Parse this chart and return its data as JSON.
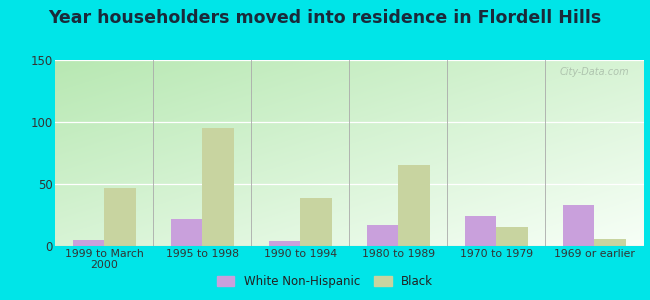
{
  "title": "Year householders moved into residence in Flordell Hills",
  "categories": [
    "1999 to March\n2000",
    "1995 to 1998",
    "1990 to 1994",
    "1980 to 1989",
    "1970 to 1979",
    "1969 or earlier"
  ],
  "white_values": [
    5,
    22,
    4,
    17,
    24,
    33
  ],
  "black_values": [
    47,
    95,
    39,
    65,
    15,
    6
  ],
  "white_color": "#c9a0dc",
  "black_color": "#c8d4a0",
  "ylim": [
    0,
    150
  ],
  "yticks": [
    0,
    50,
    100,
    150
  ],
  "bg_top_left": "#b8e8b0",
  "bg_bottom_right": "#f0fff8",
  "outer_bg": "#00e5e8",
  "title_fontsize": 12.5,
  "title_color": "#1a2a3a",
  "watermark": "City-Data.com",
  "legend_white": "White Non-Hispanic",
  "legend_black": "Black",
  "bar_width": 0.32
}
